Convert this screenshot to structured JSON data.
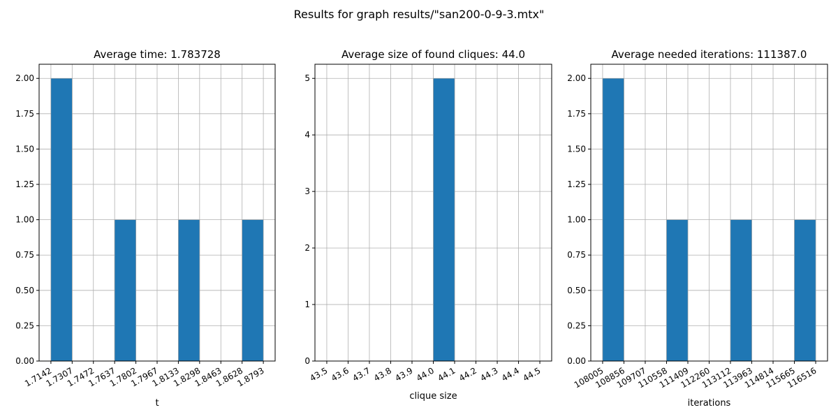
{
  "suptitle": "Results for graph results/\"san200-0-9-3.mtx\"",
  "chart_data": [
    {
      "type": "bar",
      "title": "Average time: 1.783728",
      "xlabel": "t",
      "ylabel": "",
      "grid": true,
      "bar_color": "#1f77b4",
      "bin_edges": [
        "1.7142",
        "1.7307",
        "1.7472",
        "1.7637",
        "1.7802",
        "1.7967",
        "1.8133",
        "1.8298",
        "1.8463",
        "1.8628",
        "1.8793"
      ],
      "values": [
        2,
        0,
        0,
        1,
        0,
        0,
        1,
        0,
        0,
        1
      ],
      "ylim": [
        0,
        2.1
      ],
      "yticks": [
        "0.00",
        "0.25",
        "0.50",
        "0.75",
        "1.00",
        "1.25",
        "1.50",
        "1.75",
        "2.00"
      ]
    },
    {
      "type": "bar",
      "title": "Average size of found cliques: 44.0",
      "xlabel": "clique size",
      "ylabel": "",
      "grid": true,
      "bar_color": "#1f77b4",
      "bin_edges": [
        "43.5",
        "43.6",
        "43.7",
        "43.8",
        "43.9",
        "44.0",
        "44.1",
        "44.2",
        "44.3",
        "44.4",
        "44.5"
      ],
      "values": [
        0,
        0,
        0,
        0,
        0,
        5,
        0,
        0,
        0,
        0
      ],
      "ylim": [
        0,
        5.25
      ],
      "yticks": [
        "0",
        "1",
        "2",
        "3",
        "4",
        "5"
      ]
    },
    {
      "type": "bar",
      "title": "Average needed iterations: 111387.0",
      "xlabel": "iterations",
      "ylabel": "",
      "grid": true,
      "bar_color": "#1f77b4",
      "bin_edges": [
        "108005",
        "108856",
        "109707",
        "110558",
        "111409",
        "112260",
        "113112",
        "113963",
        "114814",
        "115665",
        "116516"
      ],
      "values": [
        2,
        0,
        0,
        1,
        0,
        0,
        1,
        0,
        0,
        1
      ],
      "ylim": [
        0,
        2.1
      ],
      "yticks": [
        "0.00",
        "0.25",
        "0.50",
        "0.75",
        "1.00",
        "1.25",
        "1.50",
        "1.75",
        "2.00"
      ]
    }
  ]
}
